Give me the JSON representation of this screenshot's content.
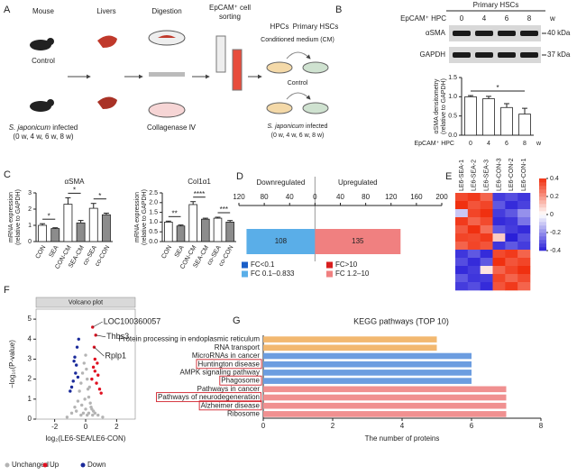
{
  "schematic": {
    "panel": "A",
    "mouse": "Mouse",
    "livers": "Livers",
    "digestion": "Digestion",
    "sorting": [
      "EpCAM⁺ cell",
      "sorting"
    ],
    "hpcs": "HPCs",
    "hscs": "Primary HSCs",
    "cm": "Conditioned medium (CM)",
    "control": "Control",
    "species": "S. japonicum",
    "infected": "infected",
    "weeks": "(0 w, 4 w, 6 w, 8 w)",
    "enzyme": "Collagenase Ⅳ"
  },
  "blot": {
    "panel": "B",
    "title": "Primary HSCs",
    "hpc": "EpCAM⁺ HPC",
    "lanes": [
      "0",
      "4",
      "6",
      "8"
    ],
    "unit": "w",
    "rows": [
      {
        "name": "αSMA",
        "size": "40 kDa"
      },
      {
        "name": "GAPDH",
        "size": "37 kDa"
      }
    ]
  },
  "chart_data": [
    {
      "type": "bar",
      "categories": [
        "0",
        "4",
        "6",
        "8"
      ],
      "values": [
        1.0,
        0.95,
        0.72,
        0.55
      ],
      "errors": [
        0.03,
        0.06,
        0.1,
        0.15
      ],
      "color": "#ffffff",
      "ylim": [
        0,
        1.5
      ],
      "yticks": [
        {
          "value": 0,
          "label": "0.0"
        },
        {
          "value": 0.5,
          "label": "0.5"
        },
        {
          "value": 1,
          "label": "1.0"
        },
        {
          "value": 1.5,
          "label": "1.5"
        }
      ],
      "ylabel": [
        "αSMA densitometry",
        "(relative to GAPDH)"
      ],
      "xlabel": "EpCAM⁺ HPC",
      "unit": "w",
      "significance": [
        {
          "from": 0,
          "to": 3,
          "label": "*"
        }
      ]
    },
    {
      "type": "bar",
      "panel": "C",
      "title": "αSMA",
      "categories": [
        "CON",
        "SEA",
        "CON-CM",
        "SEA-CM",
        "co-SEA",
        "co-CON"
      ],
      "values": [
        1.0,
        0.8,
        2.3,
        1.15,
        2.05,
        1.65
      ],
      "errors": [
        0.1,
        0.05,
        0.4,
        0.15,
        0.3,
        0.1
      ],
      "colors": [
        "#ffffff",
        "#8c8c8c",
        "#ffffff",
        "#8c8c8c",
        "#ffffff",
        "#8c8c8c"
      ],
      "ylim": [
        0,
        3
      ],
      "yticks": [
        0,
        1,
        2,
        3
      ],
      "ylabel": [
        "mRNA expression",
        "(relative to GAPDH)"
      ],
      "significance": [
        {
          "from": 0,
          "to": 1,
          "label": "*"
        },
        {
          "from": 2,
          "to": 3,
          "label": "*"
        },
        {
          "from": 4,
          "to": 5,
          "label": "*"
        }
      ]
    },
    {
      "type": "bar",
      "title": "Col1α1",
      "categories": [
        "CON",
        "SEA",
        "CON-CM",
        "SEA-CM",
        "co-SEA",
        "co-CON"
      ],
      "values": [
        1.0,
        0.8,
        1.9,
        1.15,
        1.2,
        1.0
      ],
      "errors": [
        0.05,
        0.05,
        0.15,
        0.05,
        0.05,
        0.08
      ],
      "colors": [
        "#ffffff",
        "#8c8c8c",
        "#ffffff",
        "#8c8c8c",
        "#ffffff",
        "#8c8c8c"
      ],
      "ylim": [
        0,
        2.5
      ],
      "yticks": [
        {
          "value": 0,
          "label": "0.0"
        },
        {
          "value": 0.5,
          "label": "0.5"
        },
        {
          "value": 1,
          "label": "1.0"
        },
        {
          "value": 1.5,
          "label": "1.5"
        },
        {
          "value": 2,
          "label": "2.0"
        },
        {
          "value": 2.5,
          "label": "2.5"
        }
      ],
      "ylabel": [
        "mRNA expression",
        "(relative to GAPDH)"
      ],
      "significance": [
        {
          "from": 0,
          "to": 1,
          "label": "**"
        },
        {
          "from": 2,
          "to": 3,
          "label": "****"
        },
        {
          "from": 4,
          "to": 5,
          "label": "***"
        }
      ]
    },
    {
      "type": "diverging",
      "panel": "D",
      "series": [
        {
          "name": "Downregulated",
          "color": "#5aaee8",
          "values": [
            -108
          ],
          "value_labels": [
            "108"
          ]
        },
        {
          "name": "Upregulated",
          "color": "#f08080",
          "values": [
            135
          ]
        }
      ],
      "xlim": [
        -120,
        200
      ],
      "xticks": [
        {
          "value": -120,
          "label": "120"
        },
        {
          "value": -80,
          "label": "80"
        },
        {
          "value": -40,
          "label": "40"
        },
        0,
        40,
        80,
        120,
        160,
        200
      ],
      "legend": [
        {
          "name": "FC<0.1",
          "color": "#1a5fc8"
        },
        {
          "name": "FC 0.1–0.833",
          "color": "#5aaee8"
        },
        {
          "name": "FC>10",
          "color": "#d81e1e"
        },
        {
          "name": "FC 1.2–10",
          "color": "#f08080"
        }
      ]
    },
    {
      "type": "heatmap",
      "panel": "E",
      "columns": [
        "LE6-SEA-1",
        "LE6-SEA-2",
        "LE6-SEA-3",
        "LE6-CON-3",
        "LE6-CON-2",
        "LE6-CON-1"
      ],
      "values": [
        [
          0.35,
          0.38,
          0.3,
          -0.35,
          -0.32,
          -0.36
        ],
        [
          0.4,
          0.33,
          0.36,
          -0.3,
          -0.38,
          -0.34
        ],
        [
          -0.1,
          0.36,
          0.4,
          -0.35,
          -0.3,
          -0.2
        ],
        [
          0.38,
          0.3,
          0.35,
          -0.38,
          -0.36,
          -0.25
        ],
        [
          0.32,
          0.4,
          0.28,
          -0.3,
          -0.35,
          -0.38
        ],
        [
          0.36,
          0.35,
          0.38,
          0.1,
          -0.4,
          -0.32
        ],
        [
          0.3,
          0.36,
          0.33,
          -0.36,
          -0.3,
          -0.35
        ],
        [
          -0.36,
          -0.3,
          -0.38,
          0.35,
          0.38,
          0.3
        ],
        [
          -0.32,
          -0.38,
          -0.3,
          0.4,
          0.33,
          0.36
        ],
        [
          -0.38,
          -0.35,
          0.05,
          0.3,
          0.36,
          0.4
        ],
        [
          -0.3,
          -0.36,
          -0.35,
          0.36,
          0.3,
          0.35
        ],
        [
          -0.35,
          -0.32,
          -0.38,
          0.33,
          0.38,
          0.3
        ]
      ],
      "zlim": [
        -0.4,
        0.4
      ],
      "zticks": [
        0.4,
        0.2,
        0,
        -0.2,
        -0.4
      ],
      "colormap": [
        "#2a20d8",
        "#ffffff",
        "#f03010"
      ]
    },
    {
      "type": "scatter",
      "panel": "F",
      "title": "Volcano plot",
      "xlabel": "log₂(LE6-SEA/LE6-CON)",
      "ylabel": "−log₁₀(P-value)",
      "xlim": [
        -3.2,
        3.2
      ],
      "xticks": [
        -2,
        0,
        2
      ],
      "ylim": [
        0,
        5.5
      ],
      "yticks": [
        0,
        1,
        2,
        3,
        4,
        5
      ],
      "series": [
        {
          "name": "Unchanged",
          "color": "#b4b4b4",
          "x": [
            -0.9,
            -0.7,
            -0.5,
            -0.4,
            -0.3,
            -0.2,
            -0.1,
            0,
            0.05,
            0.1,
            0.15,
            0.2,
            0.3,
            0.4,
            0.5,
            0.6,
            0.8,
            -0.6,
            -0.25,
            0.25,
            -0.05,
            0.35,
            -0.15,
            0.45,
            -1.2,
            1.1,
            0,
            0.1,
            -0.3,
            0.2
          ],
          "y": [
            0.3,
            0.6,
            0.9,
            1.4,
            1.8,
            2.3,
            2.8,
            3.2,
            2.5,
            2.0,
            1.5,
            1.1,
            0.8,
            0.5,
            0.4,
            0.3,
            0.2,
            0.4,
            0.7,
            1.6,
            1.0,
            0.6,
            0.3,
            0.2,
            0.1,
            0.1,
            0.5,
            0.2,
            0.2,
            0.3
          ]
        },
        {
          "name": "Up",
          "color": "#e01020",
          "x": [
            0.4,
            0.5,
            0.6,
            0.7,
            0.8,
            0.9,
            0.55,
            0.65,
            0.75,
            1.0,
            0.45,
            0.6
          ],
          "y": [
            2.0,
            2.6,
            3.0,
            1.8,
            2.2,
            1.5,
            3.6,
            4.2,
            2.8,
            1.3,
            4.6,
            2.4
          ]
        },
        {
          "name": "Down",
          "color": "#1a2a9a",
          "x": [
            -0.5,
            -0.6,
            -0.7,
            -0.8,
            -0.9,
            -0.55,
            -0.65,
            -1.0,
            -0.75,
            -0.45
          ],
          "y": [
            2.1,
            2.7,
            3.1,
            1.9,
            1.6,
            3.6,
            2.3,
            1.4,
            2.9,
            4.0
          ]
        }
      ],
      "annotations": [
        {
          "text": "LOC100360057",
          "x": 0.45,
          "y": 4.6
        },
        {
          "text": "Thbs3",
          "x": 0.65,
          "y": 4.2
        },
        {
          "text": "Rplp1",
          "x": 0.55,
          "y": 3.6
        }
      ]
    },
    {
      "type": "hbar",
      "panel": "G",
      "title": "KEGG pathways (TOP 10)",
      "xlabel": "The number of proteins",
      "categories": [
        "Protein processing in endoplasmic reticulum",
        "RNA transport",
        "MicroRNAs in cancer",
        "Huntington disease",
        "AMPK signaling pathway",
        "Phagosome",
        "Pathways in cancer",
        "Pathways of neurodegeneration",
        "Alzheimer disease",
        "Ribosome"
      ],
      "values": [
        5,
        5,
        6,
        6,
        6,
        6,
        7,
        7,
        7,
        7
      ],
      "colors": [
        "#f2b870",
        "#f2b870",
        "#6c9de0",
        "#6c9de0",
        "#6c9de0",
        "#6c9de0",
        "#f09090",
        "#f09090",
        "#f09090",
        "#f09090"
      ],
      "highlighted": [
        3,
        5,
        7,
        8
      ],
      "xlim": [
        0,
        8
      ],
      "xticks": [
        0,
        2,
        4,
        6,
        8
      ]
    }
  ]
}
